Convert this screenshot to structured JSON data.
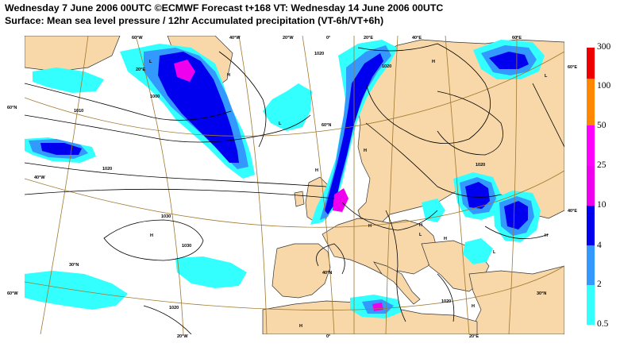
{
  "title": {
    "line1": "Wednesday 7 June 2006 00UTC ©ECMWF Forecast t+168 VT: Wednesday 14 June 2006 00UTC",
    "line2": "Surface: Mean sea level pressure / 12hr Accumulated precipitation (VT-6h/VT+6h)"
  },
  "map": {
    "colors": {
      "sea": "#ffffff",
      "land": "#f8d8a8",
      "coast": "#333333",
      "graticule": "#a07830",
      "isobar": "#000000",
      "precip_light": "#33ffff",
      "precip_mid": "#3399ff",
      "precip_heavy": "#0000ee",
      "precip_extreme": "#ee00ee"
    },
    "longitude_labels": [
      "60°W",
      "40°W",
      "20°W",
      "0°",
      "20°E",
      "40°E",
      "60°E",
      "20°W",
      "0°",
      "20°E"
    ],
    "latitude_labels": [
      "60°N",
      "60°E",
      "60°W",
      "40°E",
      "40°W",
      "20°E",
      "30°N",
      "40°N",
      "30°N",
      "60°N"
    ],
    "isobar_labels": [
      "1000",
      "1010",
      "1020",
      "1030",
      "1020",
      "1020",
      "1020",
      "1020",
      "1030",
      "1020"
    ],
    "pressure_centres": [
      "L",
      "H",
      "L",
      "H",
      "H",
      "H",
      "H",
      "H",
      "H",
      "L",
      "H",
      "H",
      "L",
      "H",
      "L",
      "H"
    ]
  },
  "legend": {
    "labels": [
      "300",
      "100",
      "50",
      "25",
      "10",
      "4",
      "2",
      "0.5"
    ],
    "colors": [
      "#ee0000",
      "#ff8800",
      "#ff00ff",
      "#ee00ee",
      "#0000ee",
      "#3399ff",
      "#33ffff"
    ]
  }
}
